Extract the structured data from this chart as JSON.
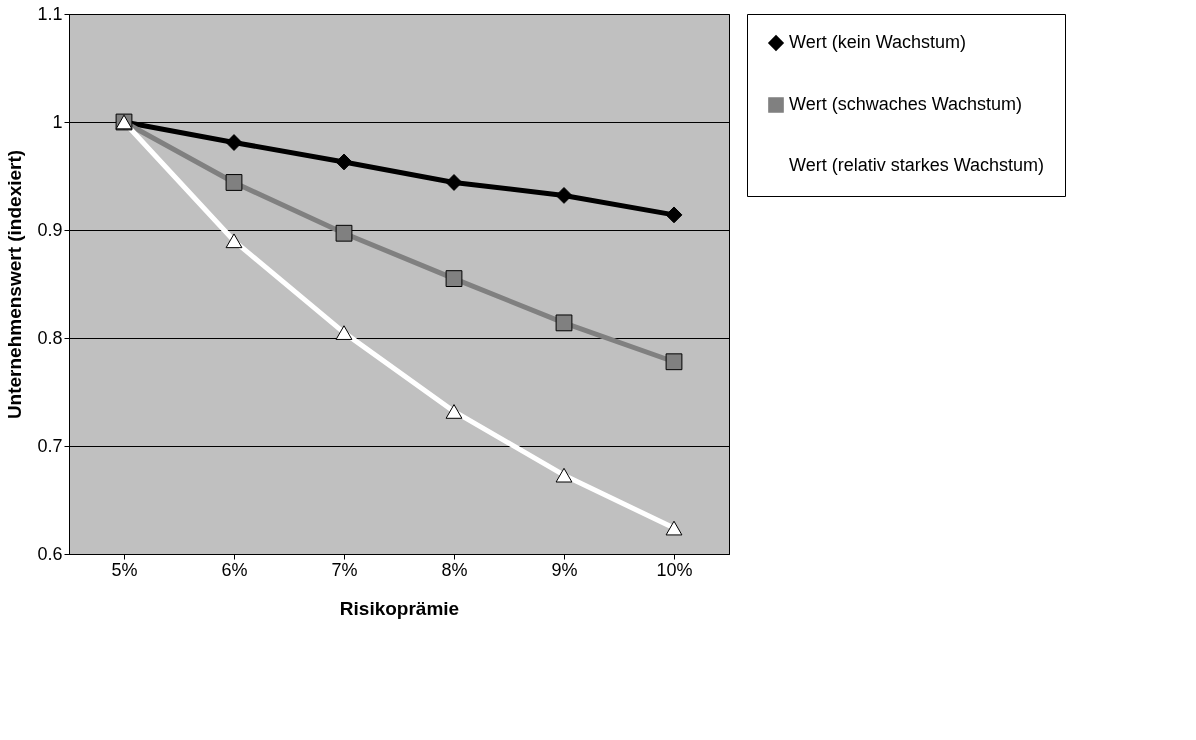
{
  "chart_data": {
    "type": "line",
    "xlabel": "Risikoprämie",
    "ylabel": "Unternehmenswert (indexiert)",
    "categories": [
      "5%",
      "6%",
      "7%",
      "8%",
      "9%",
      "10%"
    ],
    "series": [
      {
        "name": "Wert (kein Wachstum)",
        "color": "#000000",
        "marker": "diamond",
        "values": [
          1.0,
          0.981,
          0.963,
          0.944,
          0.932,
          0.914
        ]
      },
      {
        "name": "Wert (schwaches Wachstum)",
        "color": "#808080",
        "marker": "square",
        "values": [
          1.0,
          0.944,
          0.897,
          0.855,
          0.814,
          0.778
        ]
      },
      {
        "name": "Wert (relativ starkes Wachstum)",
        "color": "#ffffff",
        "marker": "triangle",
        "values": [
          1.0,
          0.89,
          0.805,
          0.732,
          0.673,
          0.624
        ]
      }
    ],
    "ylim": [
      0.6,
      1.1
    ],
    "yticks": [
      0.6,
      0.7,
      0.8,
      0.9,
      1,
      1.1
    ],
    "grid": "y",
    "legend": "right"
  }
}
